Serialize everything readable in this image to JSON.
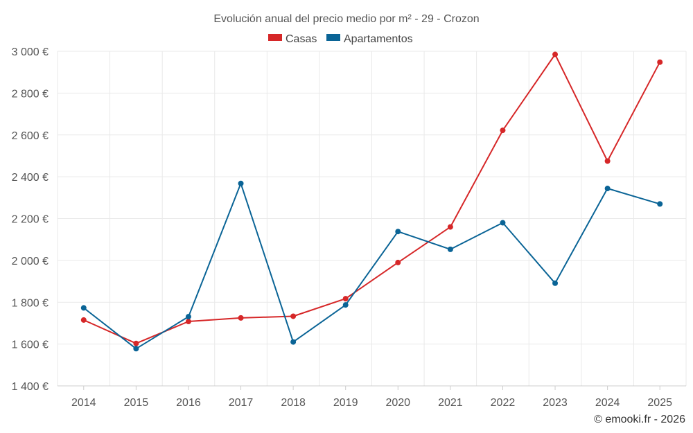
{
  "chart_data": {
    "type": "line",
    "title": "Evolución anual del precio medio por m² - 29 - Crozon",
    "categories": [
      "2014",
      "2015",
      "2016",
      "2017",
      "2018",
      "2019",
      "2020",
      "2021",
      "2022",
      "2023",
      "2024",
      "2025"
    ],
    "series": [
      {
        "name": "Casas",
        "color": "#d62728",
        "values": [
          1715,
          1603,
          1708,
          1725,
          1733,
          1817,
          1990,
          2160,
          2622,
          2985,
          2475,
          2948
        ]
      },
      {
        "name": "Apartamentos",
        "color": "#0a6496",
        "values": [
          1773,
          1578,
          1731,
          2368,
          1610,
          1787,
          2138,
          2053,
          2180,
          1891,
          2344,
          2270
        ]
      }
    ],
    "ylim": [
      1400,
      3000
    ],
    "yticks": [
      1400,
      1600,
      1800,
      2000,
      2200,
      2400,
      2600,
      2800,
      3000
    ],
    "ytick_labels": [
      "1 400 €",
      "1 600 €",
      "1 800 €",
      "2 000 €",
      "2 200 €",
      "2 400 €",
      "2 600 €",
      "2 800 €",
      "3 000 €"
    ],
    "xlabel": "",
    "ylabel": "",
    "grid": true,
    "legend_position": "top-center"
  },
  "credit": "© emooki.fr - 2026"
}
